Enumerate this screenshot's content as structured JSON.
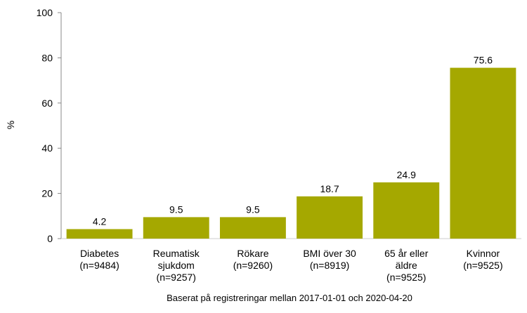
{
  "chart_data": {
    "type": "bar",
    "ylabel": "%",
    "ylim": [
      0,
      100
    ],
    "yticks": [
      0,
      20,
      40,
      60,
      80,
      100
    ],
    "grid": false,
    "bar_color": "#a5a800",
    "categories": [
      [
        "Diabetes",
        "(n=9484)"
      ],
      [
        "Reumatisk",
        "sjukdom",
        "(n=9257)"
      ],
      [
        "Rökare",
        "(n=9260)"
      ],
      [
        "BMI över 30",
        "(n=8919)"
      ],
      [
        "65 år eller",
        "äldre",
        "(n=9525)"
      ],
      [
        "Kvinnor",
        "(n=9525)"
      ]
    ],
    "values": [
      4.2,
      9.5,
      9.5,
      18.7,
      24.9,
      75.6
    ],
    "value_labels": [
      "4.2",
      "9.5",
      "9.5",
      "18.7",
      "24.9",
      "75.6"
    ],
    "footnote": "Baserat på registreringar mellan 2017-01-01 och 2020-04-20"
  }
}
